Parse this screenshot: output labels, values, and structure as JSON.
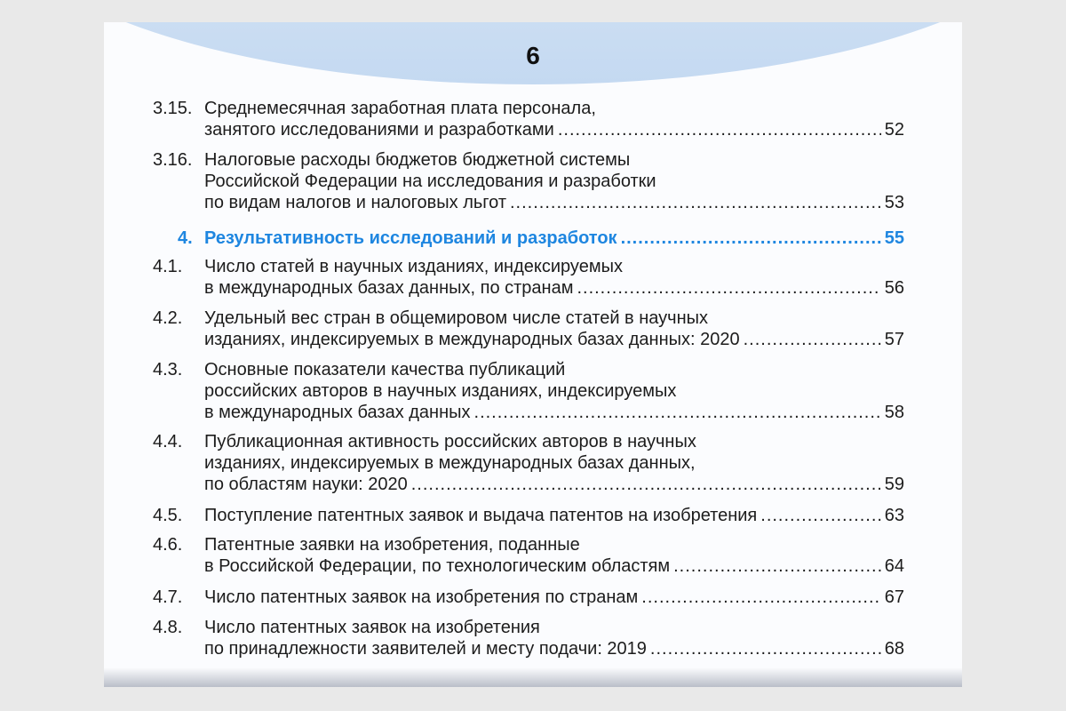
{
  "page_number": "6",
  "accent_color": "#1e86e0",
  "entries": [
    {
      "num": "3.15.",
      "lines": [
        "Среднемесячная заработная плата персонала,",
        "занятого исследованиями и разработками"
      ],
      "page": "52"
    },
    {
      "num": "3.16.",
      "lines": [
        "Налоговые расходы бюджетов бюджетной системы",
        "Российской Федерации на исследования и разработки",
        "по видам налогов и налоговых льгот"
      ],
      "page": "53"
    },
    {
      "num": "4.",
      "lines": [
        "Результативность исследований и разработок"
      ],
      "page": "55",
      "section": true
    },
    {
      "num": "4.1.",
      "lines": [
        "Число статей в научных изданиях, индексируемых",
        "в международных базах данных, по странам"
      ],
      "page": "56"
    },
    {
      "num": "4.2.",
      "lines": [
        "Удельный вес стран в общемировом числе статей в научных",
        "изданиях, индексируемых в международных базах данных: 2020"
      ],
      "page": "57"
    },
    {
      "num": "4.3.",
      "lines": [
        "Основные показатели качества публикаций",
        "российских авторов в научных изданиях, индексируемых",
        "в международных базах данных"
      ],
      "page": "58"
    },
    {
      "num": "4.4.",
      "lines": [
        "Публикационная активность российских авторов в научных",
        "изданиях, индексируемых в международных базах данных,",
        "по областям науки: 2020"
      ],
      "page": "59"
    },
    {
      "num": "4.5.",
      "lines": [
        "Поступление патентных заявок и выдача патентов на изобретения"
      ],
      "page": "63"
    },
    {
      "num": "4.6.",
      "lines": [
        "Патентные заявки на изобретения, поданные",
        "в Российской Федерации, по технологическим областям"
      ],
      "page": "64"
    },
    {
      "num": "4.7.",
      "lines": [
        "Число патентных заявок на изобретения по странам"
      ],
      "page": "67"
    },
    {
      "num": "4.8.",
      "lines": [
        "Число патентных заявок на изобретения",
        "по принадлежности заявителей и месту подачи: 2019"
      ],
      "page": "68"
    }
  ]
}
